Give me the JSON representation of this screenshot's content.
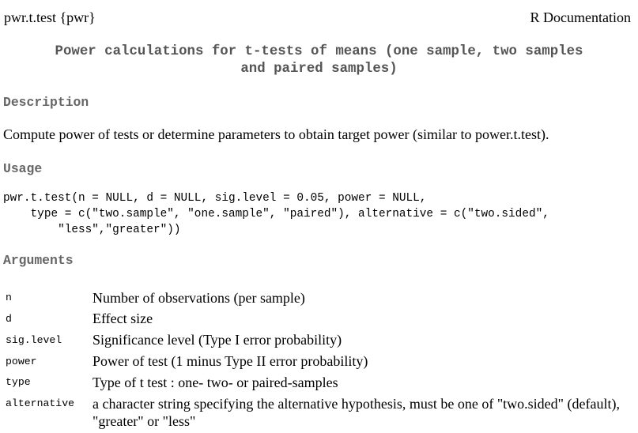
{
  "header": {
    "topic": "pwr.t.test {pwr}",
    "doc_label": "R Documentation"
  },
  "title": {
    "line1": "Power calculations for t-tests of means (one sample, two samples",
    "line2": "and paired samples)"
  },
  "description": {
    "heading": "Description",
    "text": "Compute power of tests or determine parameters to obtain target power (similar to power.t.test)."
  },
  "usage": {
    "heading": "Usage",
    "line1": "pwr.t.test(n = NULL, d = NULL, sig.level = 0.05, power = NULL,",
    "line2": "    type = c(\"two.sample\", \"one.sample\", \"paired\"), alternative = c(\"two.sided\",",
    "line3": "        \"less\",\"greater\"))"
  },
  "arguments": {
    "heading": "Arguments",
    "items": [
      {
        "name": "n",
        "description": "Number of observations (per sample)"
      },
      {
        "name": "d",
        "description": "Effect size"
      },
      {
        "name": "sig.level",
        "description": "Significance level (Type I error probability)"
      },
      {
        "name": "power",
        "description": "Power of test (1 minus Type II error probability)"
      },
      {
        "name": "type",
        "description": "Type of t test : one- two- or paired-samples"
      },
      {
        "name": "alternative",
        "description": "a character string specifying the alternative hypothesis, must be one of \"two.sided\" (default), \"greater\" or \"less\""
      }
    ]
  }
}
